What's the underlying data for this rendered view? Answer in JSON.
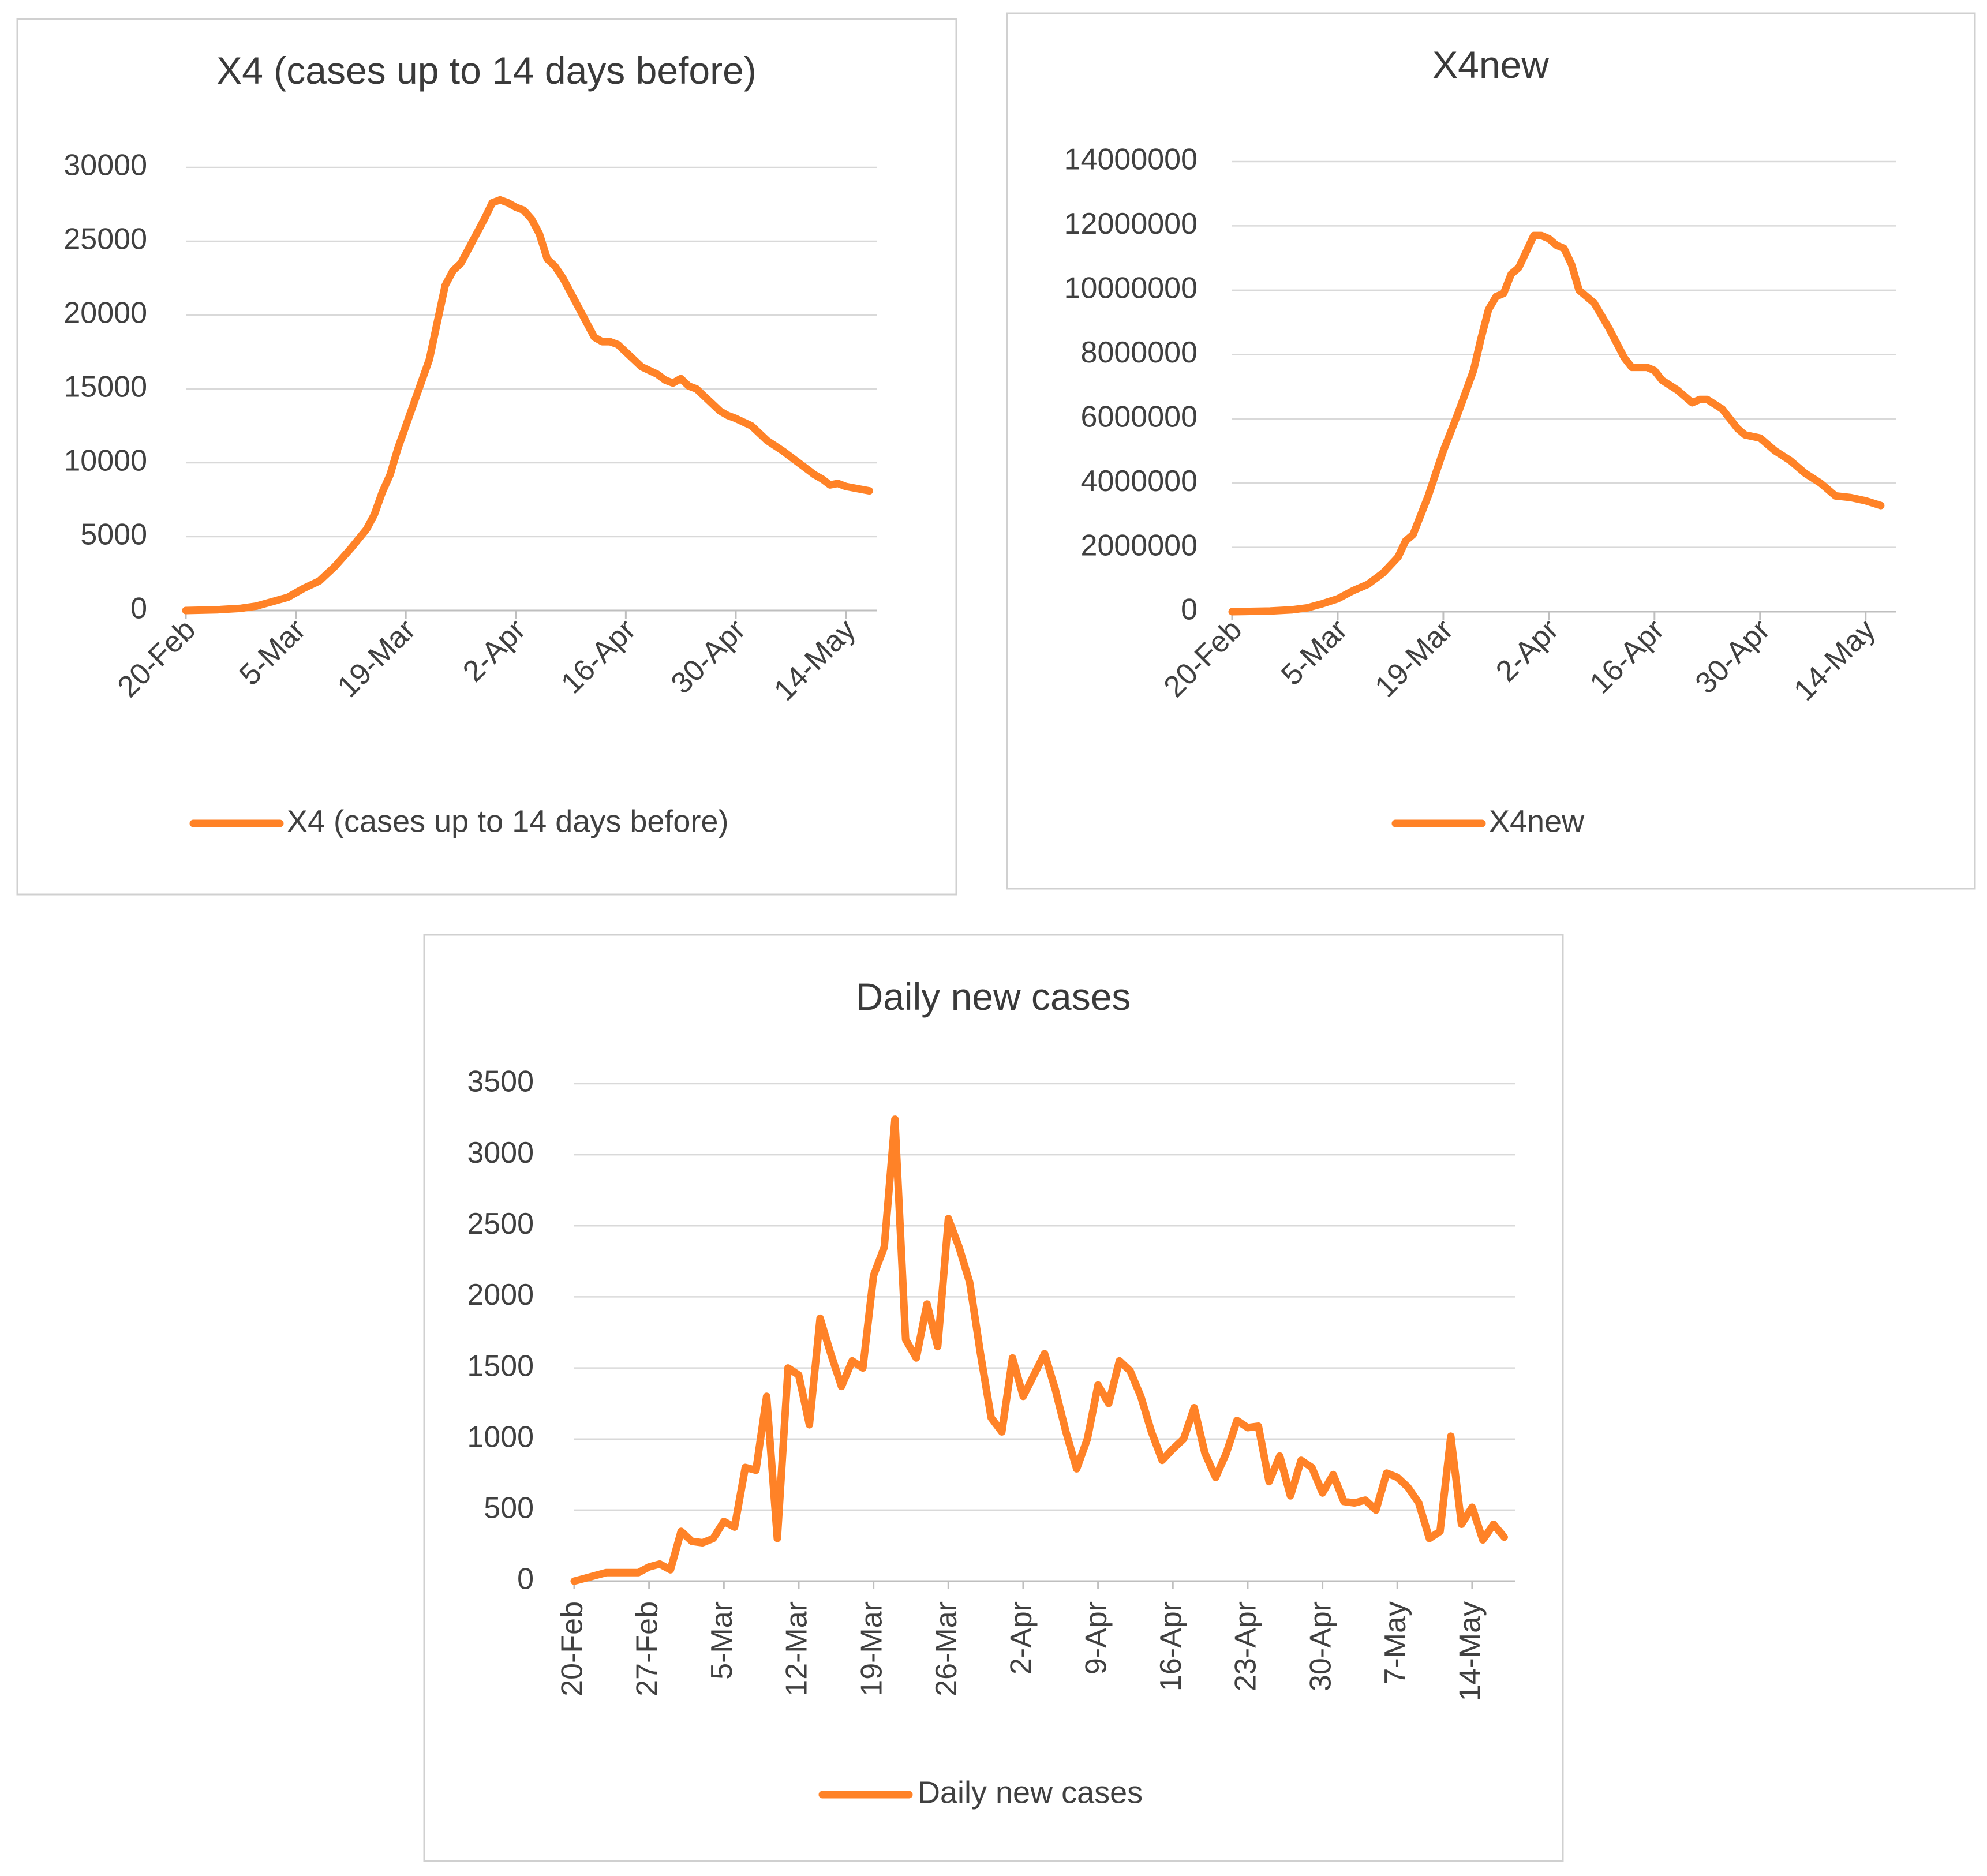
{
  "colors": {
    "series": "#ff8227"
  },
  "chart_data": [
    {
      "type": "line",
      "title": "X4 (cases up to 14 days before)",
      "legend": "X4 (cases up to 14 days before)",
      "legend_position": "bottom",
      "grid": true,
      "x_start": "20-Feb",
      "x_ticks": [
        "20-Feb",
        "5-Mar",
        "19-Mar",
        "2-Apr",
        "16-Apr",
        "30-Apr",
        "14-May"
      ],
      "x_tick_days": [
        0,
        14,
        28,
        42,
        56,
        70,
        84
      ],
      "x_tick_labels_rotation": -45,
      "xlim_days": [
        0,
        88
      ],
      "y_ticks": [
        "30000",
        "25000",
        "20000",
        "15000",
        "10000",
        "5000",
        "0"
      ],
      "ylim": [
        0,
        30000
      ],
      "series": [
        {
          "name": "X4 (cases up to 14 days before)",
          "points": [
            [
              0,
              0
            ],
            [
              4,
              50
            ],
            [
              7,
              150
            ],
            [
              9,
              300
            ],
            [
              11,
              600
            ],
            [
              13,
              900
            ],
            [
              15,
              1500
            ],
            [
              17,
              2000
            ],
            [
              19,
              3000
            ],
            [
              21,
              4200
            ],
            [
              23,
              5500
            ],
            [
              24,
              6500
            ],
            [
              25,
              8000
            ],
            [
              26,
              9200
            ],
            [
              27,
              11000
            ],
            [
              28,
              12500
            ],
            [
              29,
              14000
            ],
            [
              30,
              15500
            ],
            [
              31,
              17000
            ],
            [
              32,
              19500
            ],
            [
              33,
              22000
            ],
            [
              34,
              23000
            ],
            [
              35,
              23500
            ],
            [
              36,
              24500
            ],
            [
              37,
              25500
            ],
            [
              38,
              26500
            ],
            [
              39,
              27600
            ],
            [
              40,
              27800
            ],
            [
              41,
              27600
            ],
            [
              42,
              27300
            ],
            [
              43,
              27100
            ],
            [
              44,
              26500
            ],
            [
              45,
              25500
            ],
            [
              46,
              23800
            ],
            [
              47,
              23300
            ],
            [
              48,
              22500
            ],
            [
              49,
              21500
            ],
            [
              50,
              20500
            ],
            [
              51,
              19500
            ],
            [
              52,
              18500
            ],
            [
              53,
              18200
            ],
            [
              54,
              18200
            ],
            [
              55,
              18000
            ],
            [
              56,
              17500
            ],
            [
              57,
              17000
            ],
            [
              58,
              16500
            ],
            [
              60,
              16000
            ],
            [
              61,
              15600
            ],
            [
              62,
              15400
            ],
            [
              63,
              15700
            ],
            [
              64,
              15200
            ],
            [
              65,
              15000
            ],
            [
              66,
              14500
            ],
            [
              67,
              14000
            ],
            [
              68,
              13500
            ],
            [
              69,
              13200
            ],
            [
              70,
              13000
            ],
            [
              72,
              12500
            ],
            [
              74,
              11500
            ],
            [
              76,
              10800
            ],
            [
              78,
              10000
            ],
            [
              80,
              9200
            ],
            [
              81,
              8900
            ],
            [
              82,
              8500
            ],
            [
              83,
              8600
            ],
            [
              84,
              8400
            ],
            [
              86,
              8200
            ],
            [
              87,
              8100
            ]
          ]
        }
      ]
    },
    {
      "type": "line",
      "title": "X4new",
      "legend": "X4new",
      "legend_position": "bottom",
      "grid": true,
      "x_start": "20-Feb",
      "x_ticks": [
        "20-Feb",
        "5-Mar",
        "19-Mar",
        "2-Apr",
        "16-Apr",
        "30-Apr",
        "14-May"
      ],
      "x_tick_days": [
        0,
        14,
        28,
        42,
        56,
        70,
        84
      ],
      "x_tick_labels_rotation": -45,
      "xlim_days": [
        0,
        88
      ],
      "y_ticks": [
        "14000000",
        "12000000",
        "10000000",
        "8000000",
        "6000000",
        "4000000",
        "2000000",
        "0"
      ],
      "ylim": [
        0,
        14000000
      ],
      "series": [
        {
          "name": "X4new",
          "points": [
            [
              0,
              0
            ],
            [
              5,
              20000
            ],
            [
              8,
              60000
            ],
            [
              10,
              120000
            ],
            [
              12,
              250000
            ],
            [
              14,
              400000
            ],
            [
              16,
              650000
            ],
            [
              18,
              850000
            ],
            [
              20,
              1200000
            ],
            [
              22,
              1700000
            ],
            [
              23,
              2200000
            ],
            [
              24,
              2400000
            ],
            [
              25,
              3000000
            ],
            [
              26,
              3600000
            ],
            [
              27,
              4300000
            ],
            [
              28,
              5000000
            ],
            [
              30,
              6200000
            ],
            [
              32,
              7500000
            ],
            [
              33,
              8500000
            ],
            [
              34,
              9400000
            ],
            [
              35,
              9800000
            ],
            [
              36,
              9900000
            ],
            [
              37,
              10500000
            ],
            [
              38,
              10700000
            ],
            [
              39,
              11200000
            ],
            [
              40,
              11700000
            ],
            [
              41,
              11700000
            ],
            [
              42,
              11600000
            ],
            [
              43,
              11400000
            ],
            [
              44,
              11300000
            ],
            [
              45,
              10800000
            ],
            [
              46,
              10000000
            ],
            [
              48,
              9600000
            ],
            [
              50,
              8800000
            ],
            [
              52,
              7900000
            ],
            [
              53,
              7600000
            ],
            [
              55,
              7600000
            ],
            [
              56,
              7500000
            ],
            [
              57,
              7200000
            ],
            [
              59,
              6900000
            ],
            [
              61,
              6500000
            ],
            [
              62,
              6600000
            ],
            [
              63,
              6600000
            ],
            [
              65,
              6300000
            ],
            [
              67,
              5700000
            ],
            [
              68,
              5500000
            ],
            [
              70,
              5400000
            ],
            [
              72,
              5000000
            ],
            [
              74,
              4700000
            ],
            [
              76,
              4300000
            ],
            [
              78,
              4000000
            ],
            [
              80,
              3600000
            ],
            [
              82,
              3550000
            ],
            [
              84,
              3450000
            ],
            [
              86,
              3300000
            ]
          ]
        }
      ]
    },
    {
      "type": "line",
      "title": "Daily new cases",
      "legend": "Daily new cases",
      "legend_position": "bottom",
      "grid": true,
      "x_start": "20-Feb",
      "x_ticks": [
        "20-Feb",
        "27-Feb",
        "5-Mar",
        "12-Mar",
        "19-Mar",
        "26-Mar",
        "2-Apr",
        "9-Apr",
        "16-Apr",
        "23-Apr",
        "30-Apr",
        "7-May",
        "14-May"
      ],
      "x_tick_days": [
        0,
        7,
        14,
        21,
        28,
        35,
        42,
        49,
        56,
        63,
        70,
        77,
        84
      ],
      "x_tick_labels_rotation": -90,
      "xlim_days": [
        0,
        88
      ],
      "y_ticks": [
        "3500",
        "3000",
        "2500",
        "2000",
        "1500",
        "1000",
        "500",
        "0"
      ],
      "ylim": [
        0,
        3500
      ],
      "series": [
        {
          "name": "Daily new cases",
          "points": [
            [
              0,
              0
            ],
            [
              1,
              20
            ],
            [
              2,
              40
            ],
            [
              3,
              60
            ],
            [
              4,
              60
            ],
            [
              5,
              60
            ],
            [
              6,
              60
            ],
            [
              7,
              100
            ],
            [
              8,
              120
            ],
            [
              9,
              80
            ],
            [
              10,
              350
            ],
            [
              11,
              280
            ],
            [
              12,
              270
            ],
            [
              13,
              300
            ],
            [
              14,
              420
            ],
            [
              15,
              380
            ],
            [
              16,
              800
            ],
            [
              17,
              780
            ],
            [
              18,
              1300
            ],
            [
              19,
              300
            ],
            [
              20,
              1500
            ],
            [
              21,
              1450
            ],
            [
              22,
              1100
            ],
            [
              23,
              1850
            ],
            [
              24,
              1600
            ],
            [
              25,
              1370
            ],
            [
              26,
              1550
            ],
            [
              27,
              1500
            ],
            [
              28,
              2150
            ],
            [
              29,
              2350
            ],
            [
              30,
              3250
            ],
            [
              31,
              1700
            ],
            [
              32,
              1570
            ],
            [
              33,
              1950
            ],
            [
              34,
              1650
            ],
            [
              35,
              2550
            ],
            [
              36,
              2350
            ],
            [
              37,
              2100
            ],
            [
              38,
              1600
            ],
            [
              39,
              1150
            ],
            [
              40,
              1050
            ],
            [
              41,
              1570
            ],
            [
              42,
              1300
            ],
            [
              43,
              1450
            ],
            [
              44,
              1600
            ],
            [
              45,
              1350
            ],
            [
              46,
              1050
            ],
            [
              47,
              790
            ],
            [
              48,
              1000
            ],
            [
              49,
              1380
            ],
            [
              50,
              1250
            ],
            [
              51,
              1550
            ],
            [
              52,
              1480
            ],
            [
              53,
              1300
            ],
            [
              54,
              1050
            ],
            [
              55,
              850
            ],
            [
              56,
              930
            ],
            [
              57,
              1000
            ],
            [
              58,
              1220
            ],
            [
              59,
              900
            ],
            [
              60,
              730
            ],
            [
              61,
              900
            ],
            [
              62,
              1130
            ],
            [
              63,
              1080
            ],
            [
              64,
              1090
            ],
            [
              65,
              700
            ],
            [
              66,
              880
            ],
            [
              67,
              600
            ],
            [
              68,
              850
            ],
            [
              69,
              800
            ],
            [
              70,
              620
            ],
            [
              71,
              750
            ],
            [
              72,
              560
            ],
            [
              73,
              550
            ],
            [
              74,
              570
            ],
            [
              75,
              500
            ],
            [
              76,
              760
            ],
            [
              77,
              730
            ],
            [
              78,
              660
            ],
            [
              79,
              550
            ],
            [
              80,
              300
            ],
            [
              81,
              350
            ],
            [
              82,
              1020
            ],
            [
              83,
              400
            ],
            [
              84,
              520
            ],
            [
              85,
              290
            ],
            [
              86,
              400
            ],
            [
              87,
              310
            ]
          ]
        }
      ]
    }
  ]
}
